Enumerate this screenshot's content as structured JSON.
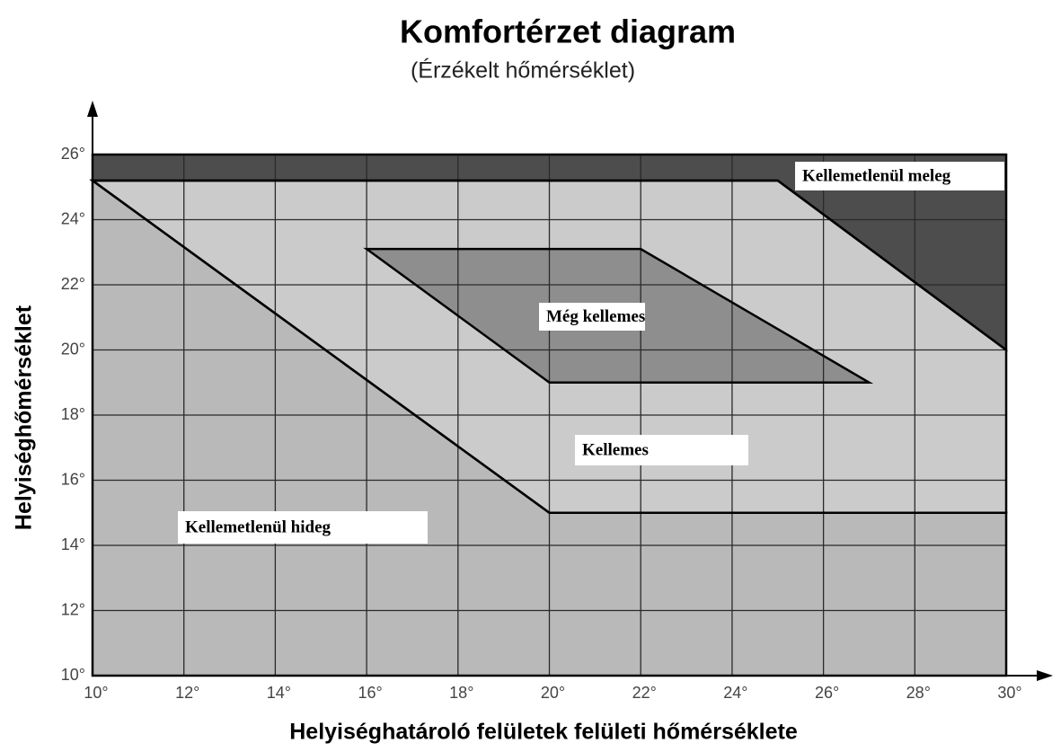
{
  "chart_data": {
    "type": "region",
    "title": "Komfortérzet diagram",
    "subtitle": "(Érzékelt hőmérséklet)",
    "xlabel": "Helyiséghatároló felületek felületi hőmérséklete",
    "ylabel": "Helyiséghőmérséklet",
    "xlim": [
      10,
      30
    ],
    "ylim": [
      10,
      26
    ],
    "xticks": [
      {
        "value": 10,
        "label": "10°"
      },
      {
        "value": 12,
        "label": "12°"
      },
      {
        "value": 14,
        "label": "14°"
      },
      {
        "value": 16,
        "label": "16°"
      },
      {
        "value": 18,
        "label": "18°"
      },
      {
        "value": 20,
        "label": "20°"
      },
      {
        "value": 22,
        "label": "22°"
      },
      {
        "value": 24,
        "label": "24°"
      },
      {
        "value": 26,
        "label": "26°"
      },
      {
        "value": 28,
        "label": "28°"
      },
      {
        "value": 30,
        "label": "30°"
      }
    ],
    "yticks": [
      {
        "value": 10,
        "label": "10°"
      },
      {
        "value": 12,
        "label": "12°"
      },
      {
        "value": 14,
        "label": "14°"
      },
      {
        "value": 16,
        "label": "16°"
      },
      {
        "value": 18,
        "label": "18°"
      },
      {
        "value": 20,
        "label": "20°"
      },
      {
        "value": 22,
        "label": "22°"
      },
      {
        "value": 24,
        "label": "24°"
      },
      {
        "value": 26,
        "label": "26°"
      }
    ],
    "grid": true,
    "series": [
      {
        "name": "Kellemetlenül meleg",
        "color": "#4d4d4d",
        "x": [
          10,
          30,
          30,
          25,
          10
        ],
        "y": [
          26,
          26,
          20,
          25.2,
          25.2
        ]
      },
      {
        "name": "Még kellemes",
        "color": "#cbcbcb",
        "x": [
          10,
          25,
          30,
          30,
          20
        ],
        "y": [
          25.2,
          25.2,
          20,
          15,
          15
        ]
      },
      {
        "name": "Kellemes",
        "color": "#8e8e8e",
        "x": [
          16,
          22,
          27,
          20
        ],
        "y": [
          23.1,
          23.1,
          19,
          19
        ]
      },
      {
        "name": "Kellemetlenül hideg",
        "color": "#b9b9b9",
        "x": [
          10,
          30,
          30,
          20,
          10
        ],
        "y": [
          10,
          10,
          15,
          15,
          25.2
        ]
      }
    ]
  }
}
